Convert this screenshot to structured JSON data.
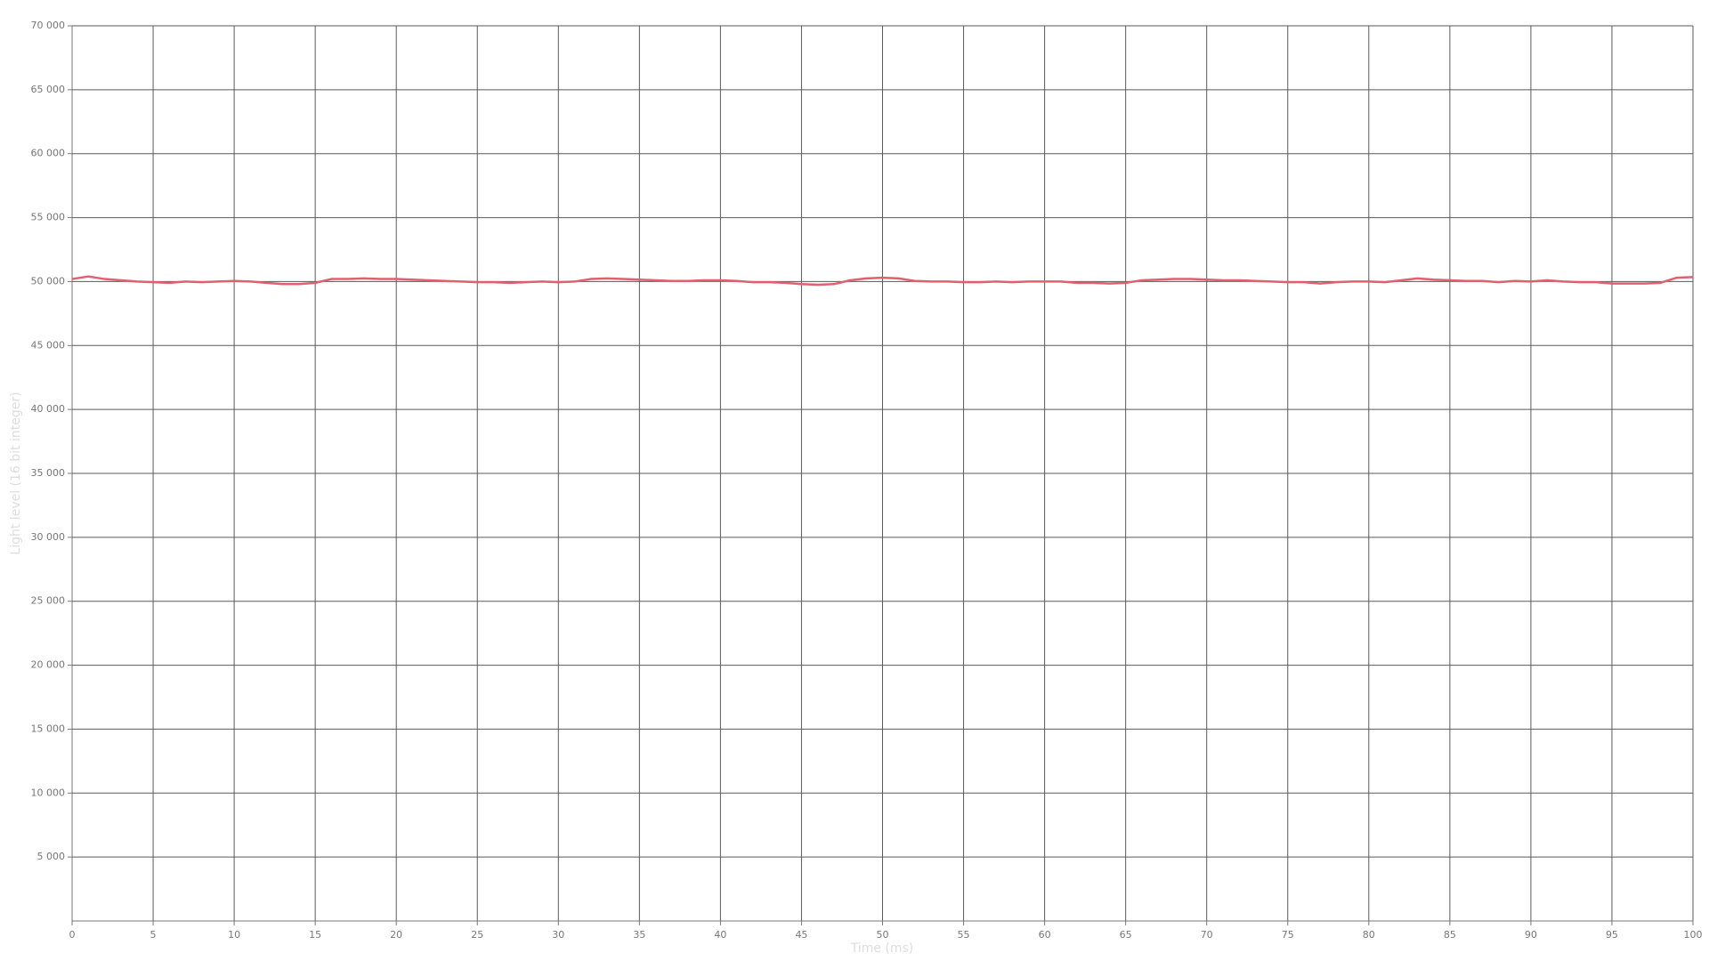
{
  "chart_data": {
    "type": "line",
    "x_label": "Time (ms)",
    "y_label": "Light level (16 bit integer)",
    "x": [
      0,
      1,
      2,
      3,
      4,
      5,
      6,
      7,
      8,
      9,
      10,
      11,
      12,
      13,
      14,
      15,
      16,
      17,
      18,
      19,
      20,
      21,
      22,
      23,
      24,
      25,
      26,
      27,
      28,
      29,
      30,
      31,
      32,
      33,
      34,
      35,
      36,
      37,
      38,
      39,
      40,
      41,
      42,
      43,
      44,
      45,
      46,
      47,
      48,
      49,
      50,
      51,
      52,
      53,
      54,
      55,
      56,
      57,
      58,
      59,
      60,
      61,
      62,
      63,
      64,
      65,
      66,
      67,
      68,
      69,
      70,
      71,
      72,
      73,
      74,
      75,
      76,
      77,
      78,
      79,
      80,
      81,
      82,
      83,
      84,
      85,
      86,
      87,
      88,
      89,
      90,
      91,
      92,
      93,
      94,
      95,
      96,
      97,
      98,
      99,
      100
    ],
    "values": [
      50200,
      50400,
      50200,
      50100,
      50000,
      49950,
      49900,
      50000,
      49950,
      50000,
      50050,
      50000,
      49900,
      49800,
      49800,
      49900,
      50200,
      50200,
      50250,
      50200,
      50200,
      50150,
      50100,
      50050,
      50000,
      49950,
      49950,
      49900,
      49950,
      50000,
      49950,
      50000,
      50200,
      50250,
      50200,
      50150,
      50100,
      50050,
      50050,
      50100,
      50100,
      50050,
      49950,
      49950,
      49900,
      49800,
      49750,
      49800,
      50100,
      50250,
      50300,
      50250,
      50050,
      50000,
      50000,
      49950,
      49950,
      50000,
      49950,
      50000,
      50000,
      50000,
      49900,
      49900,
      49850,
      49900,
      50100,
      50150,
      50200,
      50200,
      50150,
      50100,
      50100,
      50050,
      50000,
      49950,
      49950,
      49850,
      49950,
      50000,
      50000,
      49950,
      50100,
      50250,
      50150,
      50100,
      50050,
      50050,
      49950,
      50050,
      50000,
      50100,
      50000,
      49950,
      49950,
      49850,
      49850,
      49850,
      49900,
      50300,
      50350
    ],
    "color": "#e0606e",
    "xlim": [
      0,
      100
    ],
    "xticks": [
      0,
      5,
      10,
      15,
      20,
      25,
      30,
      35,
      40,
      45,
      50,
      55,
      60,
      65,
      70,
      75,
      80,
      85,
      90,
      95,
      100
    ],
    "ylim": [
      0,
      70000
    ],
    "yticks": [
      {
        "value": 5000,
        "label": "5 000"
      },
      {
        "value": 10000,
        "label": "10 000"
      },
      {
        "value": 15000,
        "label": "15 000"
      },
      {
        "value": 20000,
        "label": "20 000"
      },
      {
        "value": 25000,
        "label": "25 000"
      },
      {
        "value": 30000,
        "label": "30 000"
      },
      {
        "value": 35000,
        "label": "35 000"
      },
      {
        "value": 40000,
        "label": "40 000"
      },
      {
        "value": 45000,
        "label": "45 000"
      },
      {
        "value": 50000,
        "label": "50 000"
      },
      {
        "value": 55000,
        "label": "55 000"
      },
      {
        "value": 60000,
        "label": "60 000"
      },
      {
        "value": 65000,
        "label": "65 000"
      },
      {
        "value": 70000,
        "label": "70 000"
      }
    ],
    "grid": true
  }
}
